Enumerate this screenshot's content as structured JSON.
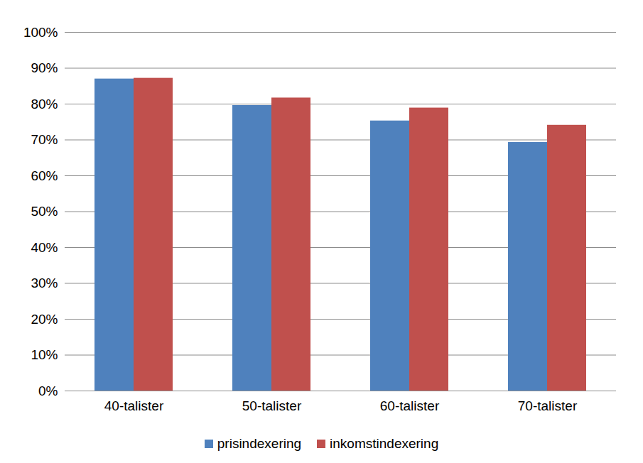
{
  "chart_data": {
    "type": "bar",
    "categories": [
      "40-talister",
      "50-talister",
      "60-talister",
      "70-talister"
    ],
    "series": [
      {
        "name": "prisindexering",
        "color": "#4f81bd",
        "values": [
          87.0,
          79.6,
          75.3,
          69.3
        ]
      },
      {
        "name": "inkomstindexering",
        "color": "#c0504d",
        "values": [
          87.2,
          81.7,
          78.9,
          74.1
        ]
      }
    ],
    "ylim": [
      0,
      100
    ],
    "yticks": [
      {
        "value": 0,
        "label": "0%"
      },
      {
        "value": 10,
        "label": "10%"
      },
      {
        "value": 20,
        "label": "20%"
      },
      {
        "value": 30,
        "label": "30%"
      },
      {
        "value": 40,
        "label": "40%"
      },
      {
        "value": 50,
        "label": "50%"
      },
      {
        "value": 60,
        "label": "60%"
      },
      {
        "value": 70,
        "label": "70%"
      },
      {
        "value": 80,
        "label": "80%"
      },
      {
        "value": 90,
        "label": "90%"
      },
      {
        "value": 100,
        "label": "100%"
      }
    ],
    "grid": true,
    "legend": "bottom"
  }
}
